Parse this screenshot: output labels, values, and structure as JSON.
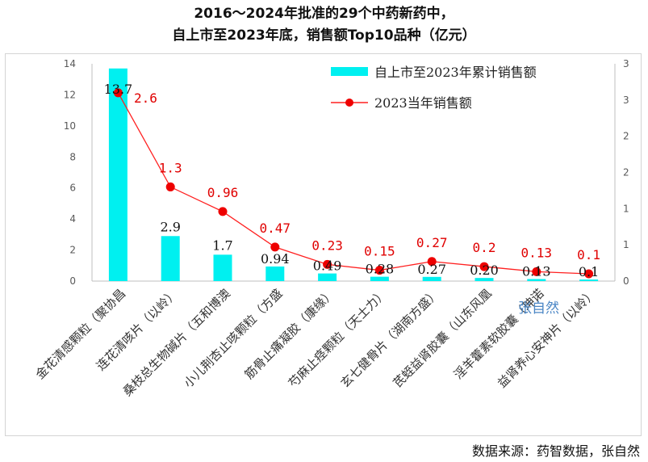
{
  "title_line1": "2016～2024年批准的29个中药新药中，",
  "title_line2": "自上市至2023年底，销售额Top10品种（亿元）",
  "source": "数据来源：药智数据，张自然",
  "watermark": "张自然",
  "colors": {
    "bar": "#00f0f0",
    "line": "#ff2020",
    "marker": "#ee0000",
    "axis": "#595959",
    "label_bar": "#111111",
    "label_line": "#e00000"
  },
  "chart_data": {
    "type": "bar+line",
    "categories": [
      "金花清感颗粒（聚协昌",
      "连花清咳片（以岭）",
      "桑枝总生物碱片（五和博澳",
      "小儿荆杏止咳颗粒（方盛",
      "筋骨止痛凝胶（康缘）",
      "芍麻止痉颗粒（天士力）",
      "玄七健骨片（湖南方盛）",
      "芪蛭益肾胶囊（山东风凰",
      "淫羊藿素软胶囊（珅诺",
      "益肾养心安神片（以岭）"
    ],
    "series": [
      {
        "name": "自上市至2023年累计销售额",
        "type": "bar",
        "axis": "left",
        "values": [
          13.7,
          2.9,
          1.7,
          0.94,
          0.49,
          0.28,
          0.27,
          0.2,
          0.13,
          0.1
        ],
        "labels": [
          "13.7",
          "2.9",
          "1.7",
          "0.94",
          "0.49",
          "0.28",
          "0.27",
          "0.20",
          "0.13",
          "0.1"
        ]
      },
      {
        "name": "2023当年销售额",
        "type": "line",
        "axis": "right",
        "values": [
          2.6,
          1.3,
          0.96,
          0.47,
          0.23,
          0.15,
          0.27,
          0.2,
          0.13,
          0.1
        ],
        "labels": [
          "2.6",
          "1.3",
          "0.96",
          "0.47",
          "0.23",
          "0.15",
          "0.27",
          "0.2",
          "0.13",
          "0.1"
        ]
      }
    ],
    "left_axis": {
      "ylim": [
        0,
        14
      ],
      "ticks": [
        "0",
        "2",
        "4",
        "6",
        "8",
        "10",
        "12",
        "14"
      ]
    },
    "right_axis": {
      "ylim": [
        0,
        3
      ],
      "ticks": [
        "0",
        "1",
        "1",
        "2",
        "2",
        "3",
        "3"
      ]
    },
    "legend_position": "top-right",
    "grid": false
  }
}
